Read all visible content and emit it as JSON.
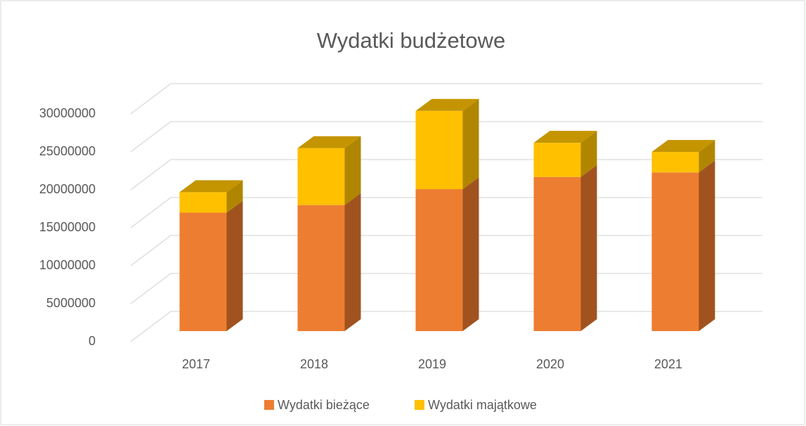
{
  "chart_data": {
    "type": "bar3d",
    "title": "Wydatki budżetowe",
    "categories": [
      "2017",
      "2018",
      "2019",
      "2020",
      "2021"
    ],
    "series": [
      {
        "name": "Wydatki bieżące",
        "color": "#ed7d31",
        "side_color": "#a0531f",
        "top_color": "#c96a28",
        "values": [
          15600000,
          16600000,
          18700000,
          20300000,
          20900000
        ]
      },
      {
        "name": "Wydatki majątkowe",
        "color": "#ffc000",
        "side_color": "#b08600",
        "top_color": "#c49500",
        "values": [
          2700000,
          7500000,
          10300000,
          4500000,
          2700000
        ]
      }
    ],
    "stacked": true,
    "ylim": [
      0,
      30000000
    ],
    "yticks": [
      0,
      5000000,
      10000000,
      15000000,
      20000000,
      25000000,
      30000000
    ],
    "grid": true,
    "legend": "bottom"
  }
}
